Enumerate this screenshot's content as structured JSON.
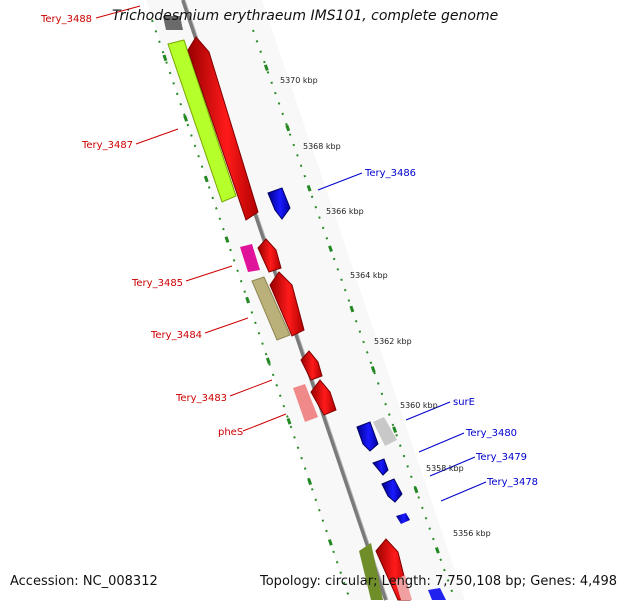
{
  "title": "Trichodesmium erythraeum IMS101, complete genome",
  "footer": {
    "accession": "Accession: NC_008312",
    "summary": "Topology: circular; Length: 7,750,108 bp; Genes: 4,498"
  },
  "scale_labels": [
    "5370 kbp",
    "5368 kbp",
    "5366 kbp",
    "5364 kbp",
    "5362 kbp",
    "5360 kbp",
    "5358 kbp",
    "5356 kbp"
  ],
  "genes_left": [
    "Tery_3488",
    "Tery_3487",
    "Tery_3485",
    "Tery_3484",
    "Tery_3483",
    "pheS"
  ],
  "genes_right": [
    "Tery_3486",
    "surE",
    "Tery_3480",
    "Tery_3479",
    "Tery_3478"
  ],
  "colors": {
    "forward_cds": "#ff0000",
    "reverse_cds": "#0000ff",
    "label_left": "#cc0000",
    "label_right": "#0000cc",
    "backbone": "#888888",
    "scale": "#228822"
  }
}
